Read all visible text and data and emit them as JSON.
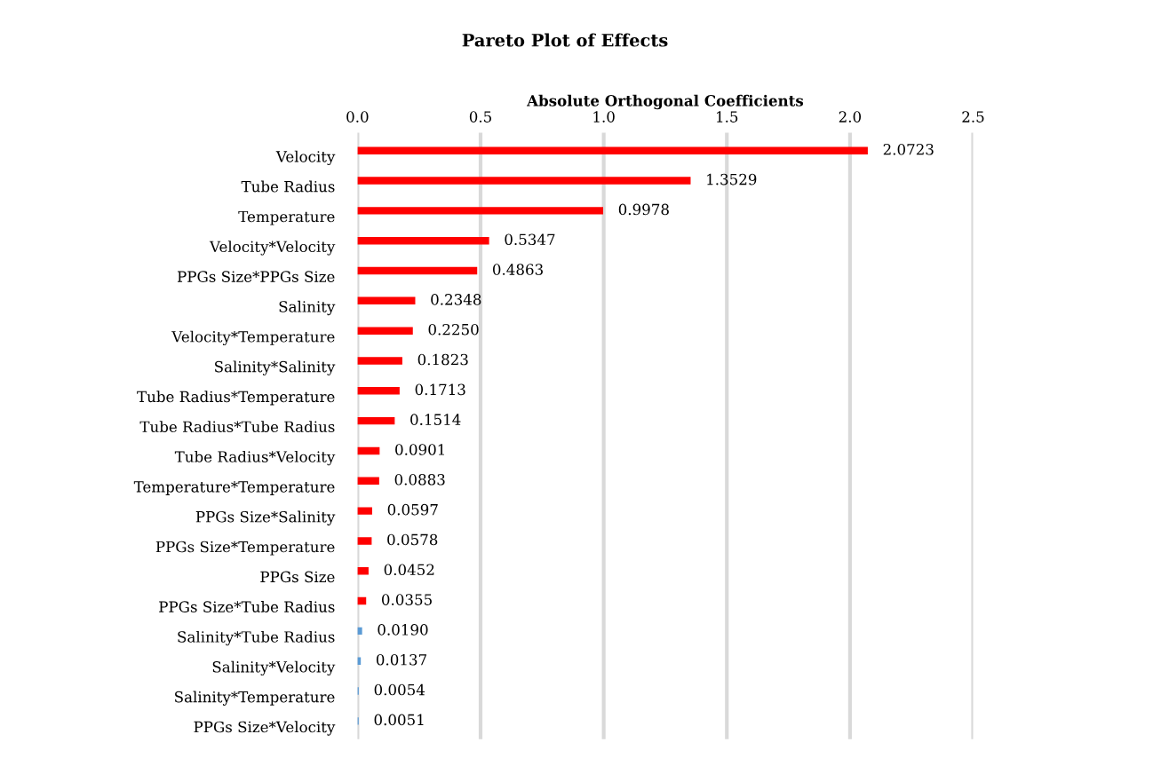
{
  "chart_data": {
    "type": "bar",
    "orientation": "horizontal",
    "title": "Pareto Plot of Effects",
    "xlabel": "Absolute Orthogonal Coefficients",
    "categories": [
      "Velocity",
      "Tube Radius",
      "Temperature",
      "Velocity*Velocity",
      "PPGs Size*PPGs Size",
      "Salinity",
      "Velocity*Temperature",
      "Salinity*Salinity",
      "Tube Radius*Temperature",
      "Tube Radius*Tube Radius",
      "Tube Radius*Velocity",
      "Temperature*Temperature",
      "PPGs Size*Salinity",
      "PPGs Size*Temperature",
      "PPGs Size",
      "PPGs Size*Tube Radius",
      "Salinity*Tube Radius",
      "Salinity*Velocity",
      "Salinity*Temperature",
      "PPGs Size*Velocity"
    ],
    "values": [
      2.0723,
      1.3529,
      0.9978,
      0.5347,
      0.4863,
      0.2348,
      0.225,
      0.1823,
      0.1713,
      0.1514,
      0.0901,
      0.0883,
      0.0597,
      0.0578,
      0.0452,
      0.0355,
      0.019,
      0.0137,
      0.0054,
      0.0051
    ],
    "value_labels": [
      "2.0723",
      "1.3529",
      "0.9978",
      "0.5347",
      "0.4863",
      "0.2348",
      "0.2250",
      "0.1823",
      "0.1713",
      "0.1514",
      "0.0901",
      "0.0883",
      "0.0597",
      "0.0578",
      "0.0452",
      "0.0355",
      "0.0190",
      "0.0137",
      "0.0054",
      "0.0051"
    ],
    "colors": [
      "#ff0000",
      "#ff0000",
      "#ff0000",
      "#ff0000",
      "#ff0000",
      "#ff0000",
      "#ff0000",
      "#ff0000",
      "#ff0000",
      "#ff0000",
      "#ff0000",
      "#ff0000",
      "#ff0000",
      "#ff0000",
      "#ff0000",
      "#ff0000",
      "#5b9bd5",
      "#5b9bd5",
      "#5b9bd5",
      "#5b9bd5"
    ],
    "xlim": [
      0,
      2.5
    ],
    "xticks": [
      {
        "value": 0,
        "label": "0.0"
      },
      {
        "value": 0.5,
        "label": "0.5"
      },
      {
        "value": 1,
        "label": "1.0"
      },
      {
        "value": 1.5,
        "label": "1.5"
      },
      {
        "value": 2,
        "label": "2.0"
      },
      {
        "value": 2.5,
        "label": "2.5"
      }
    ],
    "grid": "x",
    "legend": false
  }
}
